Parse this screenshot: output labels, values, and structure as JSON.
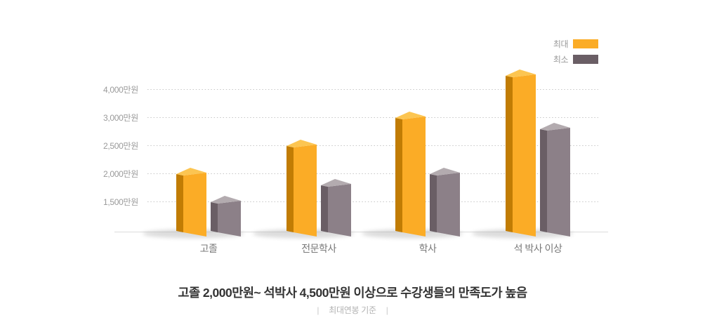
{
  "legend": {
    "max_label": "최대",
    "min_label": "최소"
  },
  "chart_data": {
    "type": "bar",
    "style": "3d-column",
    "categories": [
      "고졸",
      "전문학사",
      "학사",
      "석 박사 이상"
    ],
    "series": [
      {
        "name": "최대",
        "values": [
          2000,
          2500,
          3000,
          4500
        ],
        "colors": {
          "front": "#FBAC26",
          "side": "#C17C04",
          "top": "#FCC551"
        }
      },
      {
        "name": "최소",
        "values": [
          1500,
          1800,
          2000,
          2800
        ],
        "colors": {
          "front": "#8C8088",
          "side": "#6A5E65",
          "top": "#B3ABAF"
        }
      }
    ],
    "unit": "만원",
    "y_ticks": [
      {
        "label": "4,000만원",
        "value": 4000
      },
      {
        "label": "3,000만원",
        "value": 3000
      },
      {
        "label": "2,500만원",
        "value": 2500
      },
      {
        "label": "2,000만원",
        "value": 2000
      },
      {
        "label": "1,500만원",
        "value": 1500
      }
    ],
    "grid": "dotted-horizontal",
    "legend_position": "top-right",
    "grid_color": "#c6c6c6",
    "floor_color": "#e6e6e6",
    "shadow_color": "#8e8e8e"
  },
  "caption": {
    "title": "고졸 2,000만원~ 석박사 4,500만원 이상으로 수강생들의 만족도가 높음",
    "note": "최대연봉 기준",
    "note_delimiter": "|"
  }
}
